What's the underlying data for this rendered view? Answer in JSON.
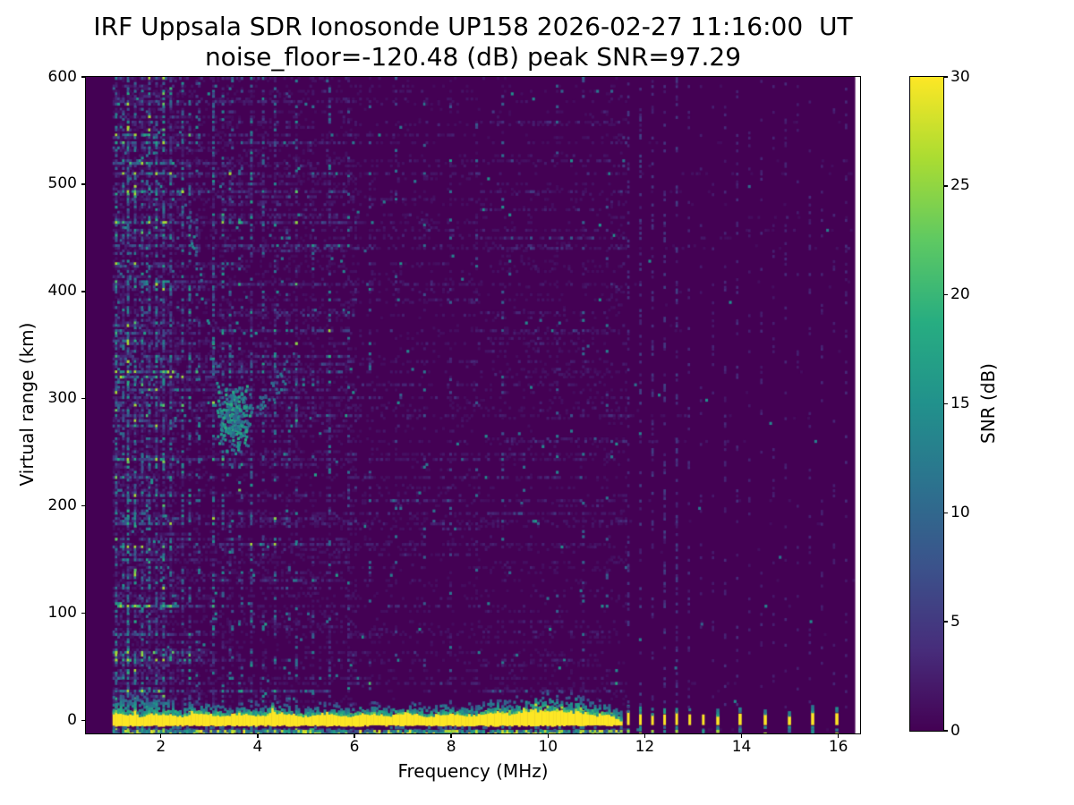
{
  "title": {
    "line1": "IRF Uppsala SDR Ionosonde UP158 2026-02-27 11:16:00  UT",
    "line2": "noise_floor=-120.48 (dB) peak SNR=97.29"
  },
  "axes": {
    "xlabel": "Frequency (MHz)",
    "ylabel": "Virtual range (km)",
    "xlim": [
      0.45,
      16.45
    ],
    "ylim": [
      -12,
      600
    ],
    "x_ticks": [
      2,
      4,
      6,
      8,
      10,
      12,
      14,
      16
    ],
    "y_ticks": [
      0,
      100,
      200,
      300,
      400,
      500,
      600
    ]
  },
  "colorbar": {
    "label": "SNR (dB)",
    "min": 0,
    "max": 30,
    "ticks": [
      0,
      5,
      10,
      15,
      20,
      25,
      30
    ],
    "colormap": "viridis",
    "stops": [
      "#440154",
      "#472d7b",
      "#3b528b",
      "#2c728e",
      "#21918c",
      "#27ad81",
      "#5ec962",
      "#aadc32",
      "#fde725"
    ]
  },
  "chart_data": {
    "type": "heatmap",
    "station": "UP158",
    "timestamp_ut": "2026-02-27 11:16:00",
    "noise_floor_db": -120.48,
    "peak_snr_db": 97.29,
    "snr_scale_db": [
      0,
      30
    ],
    "sweep_freq_mhz": [
      1.0,
      16.35
    ],
    "virtual_range_km": [
      -12,
      600
    ],
    "features": {
      "ground_pulse_band": {
        "freq_mhz": [
          1.0,
          11.5
        ],
        "range_km": [
          -4.5,
          7
        ],
        "snr_db": 30,
        "top_bump_mhz": 9.85,
        "taper_start_mhz": 11.25
      },
      "ground_fuzz": {
        "range_km": [
          7,
          32
        ],
        "snr_db": [
          5,
          22
        ],
        "thick_near_mhz": [
          1.35,
          9.9
        ]
      },
      "bottom_edge_row": {
        "range_km": [
          -12,
          -8.5
        ],
        "snr_db": [
          7,
          30
        ]
      },
      "band_blips_mhz": [
        1.45,
        2.62,
        4.28
      ],
      "echo_trace": {
        "descending_branch": {
          "from_mhz_km": [
            2.48,
            488
          ],
          "to_mhz_km": [
            3.35,
            272
          ]
        },
        "cluster": {
          "center_mhz_km": [
            3.5,
            281
          ],
          "spread_mhz_km": [
            0.4,
            36
          ],
          "snr_db": [
            8,
            19
          ]
        },
        "tail": {
          "from_mhz_km": [
            3.95,
            290
          ],
          "to_mhz_km": [
            4.55,
            322
          ]
        }
      },
      "interference_columns": [
        [
          1.06,
          2.6
        ],
        [
          1.18,
          1.6
        ],
        [
          1.3,
          3.2
        ],
        [
          1.44,
          2.2
        ],
        [
          1.58,
          1.8
        ],
        [
          1.72,
          2.6
        ],
        [
          1.88,
          1.7
        ],
        [
          2.02,
          2.4
        ],
        [
          2.18,
          1.5
        ],
        [
          2.42,
          2.2
        ],
        [
          2.56,
          1.9
        ],
        [
          2.74,
          1.2
        ],
        [
          3.06,
          2.0
        ],
        [
          3.25,
          1.3
        ],
        [
          3.42,
          1.6
        ],
        [
          3.62,
          1.1
        ],
        [
          3.84,
          1.7
        ],
        [
          4.1,
          1.2
        ],
        [
          4.33,
          1.5
        ],
        [
          4.6,
          1.0
        ],
        [
          4.78,
          1.4
        ],
        [
          5.1,
          0.9
        ],
        [
          5.45,
          1.1
        ],
        [
          5.85,
          0.8
        ],
        [
          6.3,
          0.7
        ],
        [
          6.85,
          0.8
        ],
        [
          7.4,
          0.6
        ],
        [
          7.95,
          0.7
        ],
        [
          8.5,
          0.6
        ],
        [
          9.05,
          0.6
        ],
        [
          9.6,
          0.7
        ],
        [
          10.15,
          0.5
        ],
        [
          10.7,
          0.6
        ],
        [
          11.2,
          0.5
        ]
      ],
      "rf_stripes_cluster_mhz": [
        11.66,
        11.91,
        12.16,
        12.41,
        12.66,
        12.93,
        13.21
      ],
      "rf_stripes_isolated_mhz": [
        13.51,
        13.97,
        14.49,
        14.99,
        15.47,
        15.97
      ],
      "faint_columns": {
        "start_mhz": 11.66,
        "end_mhz": 16.3,
        "spacing_mhz": 0.25
      },
      "noise_region_gain": {
        "below_2_35_mhz": 1.0,
        "2_35_to_6_mhz": 0.52,
        "6_to_11_6_mhz": 0.3,
        "above_11_6_mhz": 0.07
      }
    },
    "render_seed": 1337
  }
}
